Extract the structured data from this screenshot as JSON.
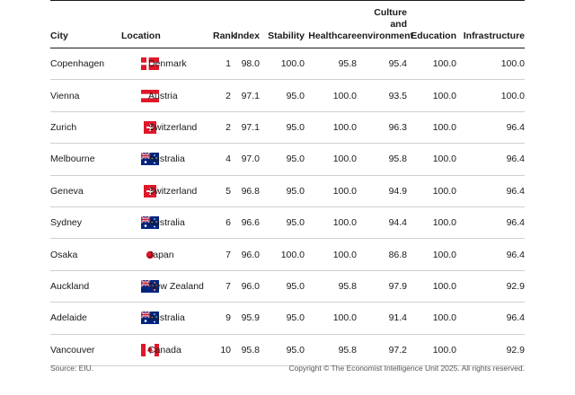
{
  "table": {
    "headers": {
      "city": "City",
      "location": "Location",
      "rank": "Rank",
      "index": "Index",
      "stability": "Stability",
      "healthcare": "Healthcare",
      "culture_line1": "Culture and",
      "culture_line2": "environment",
      "education": "Education",
      "infrastructure": "Infrastructure"
    },
    "rows": [
      {
        "city": "Copenhagen",
        "flag": "denmark-flag",
        "country": "Denmark",
        "rank": "1",
        "index": "98.0",
        "stability": "100.0",
        "healthcare": "95.8",
        "culture": "95.4",
        "education": "100.0",
        "infrastructure": "100.0"
      },
      {
        "city": "Vienna",
        "flag": "austria-flag",
        "country": "Austria",
        "rank": "2",
        "index": "97.1",
        "stability": "95.0",
        "healthcare": "100.0",
        "culture": "93.5",
        "education": "100.0",
        "infrastructure": "100.0"
      },
      {
        "city": "Zurich",
        "flag": "switzerland-flag",
        "country": "Switzerland",
        "rank": "2",
        "index": "97.1",
        "stability": "95.0",
        "healthcare": "100.0",
        "culture": "96.3",
        "education": "100.0",
        "infrastructure": "96.4"
      },
      {
        "city": "Melbourne",
        "flag": "australia-flag",
        "country": "Australia",
        "rank": "4",
        "index": "97.0",
        "stability": "95.0",
        "healthcare": "100.0",
        "culture": "95.8",
        "education": "100.0",
        "infrastructure": "96.4"
      },
      {
        "city": "Geneva",
        "flag": "switzerland-flag",
        "country": "Switzerland",
        "rank": "5",
        "index": "96.8",
        "stability": "95.0",
        "healthcare": "100.0",
        "culture": "94.9",
        "education": "100.0",
        "infrastructure": "96.4"
      },
      {
        "city": "Sydney",
        "flag": "australia-flag",
        "country": "Australia",
        "rank": "6",
        "index": "96.6",
        "stability": "95.0",
        "healthcare": "100.0",
        "culture": "94.4",
        "education": "100.0",
        "infrastructure": "96.4"
      },
      {
        "city": "Osaka",
        "flag": "japan-flag",
        "country": "Japan",
        "rank": "7",
        "index": "96.0",
        "stability": "100.0",
        "healthcare": "100.0",
        "culture": "86.8",
        "education": "100.0",
        "infrastructure": "96.4"
      },
      {
        "city": "Auckland",
        "flag": "new-zealand-flag",
        "country": "New Zealand",
        "rank": "7",
        "index": "96.0",
        "stability": "95.0",
        "healthcare": "95.8",
        "culture": "97.9",
        "education": "100.0",
        "infrastructure": "92.9"
      },
      {
        "city": "Adelaide",
        "flag": "australia-flag",
        "country": "Australia",
        "rank": "9",
        "index": "95.9",
        "stability": "95.0",
        "healthcare": "100.0",
        "culture": "91.4",
        "education": "100.0",
        "infrastructure": "96.4"
      },
      {
        "city": "Vancouver",
        "flag": "canada-flag",
        "country": "Canada",
        "rank": "10",
        "index": "95.8",
        "stability": "95.0",
        "healthcare": "95.8",
        "culture": "97.2",
        "education": "100.0",
        "infrastructure": "92.9"
      }
    ]
  },
  "footer": {
    "source": "Source: EIU.",
    "copyright": "Copyright © The Economist Intelligence Unit 2025. All rights reserved."
  },
  "colors": {
    "red": "#e0172a",
    "white": "#ffffff",
    "navy": "#00247d",
    "rule": "#1a1a1a",
    "row_rule": "#cfcfcf"
  }
}
